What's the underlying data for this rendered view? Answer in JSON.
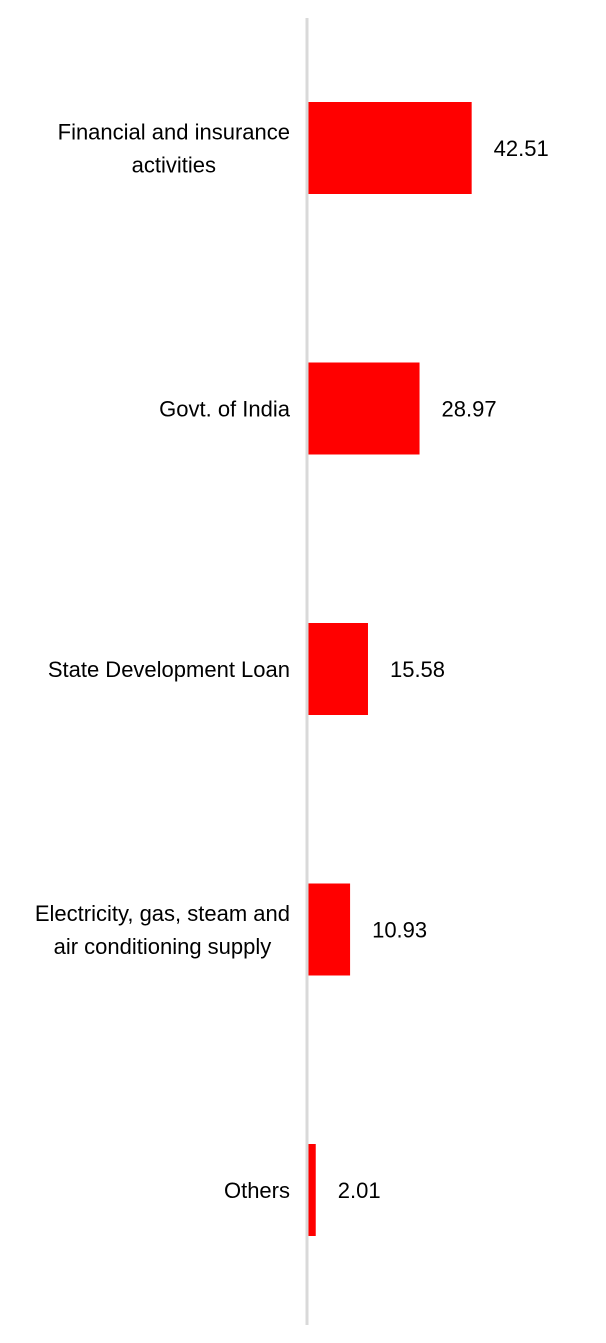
{
  "chart_data": {
    "type": "bar",
    "orientation": "horizontal",
    "categories": [
      [
        "Financial and insurance",
        "activities"
      ],
      [
        "Govt. of India"
      ],
      [
        "State Development Loan"
      ],
      [
        "Electricity, gas, steam and",
        "air conditioning supply"
      ],
      [
        "Others"
      ]
    ],
    "values": [
      42.51,
      28.97,
      15.58,
      10.93,
      2.01
    ],
    "value_labels": [
      "42.51",
      "28.97",
      "15.58",
      "10.93",
      "2.01"
    ],
    "title": "",
    "xlabel": "",
    "ylabel": "",
    "xlim": [
      0,
      100
    ],
    "grid": false,
    "legend": "none",
    "colors": {
      "bar": "#ff0000",
      "axis": "#d9d9d9",
      "text": "#000000"
    }
  }
}
